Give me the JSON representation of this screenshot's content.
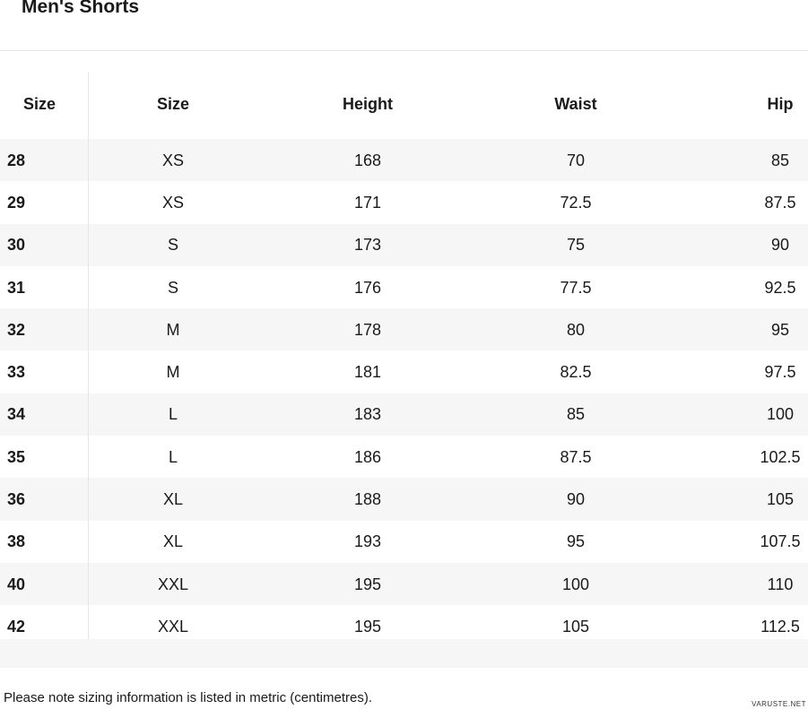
{
  "header": {
    "title": "Men's Shorts"
  },
  "table": {
    "columns": [
      "Size",
      "Size",
      "Height",
      "Waist",
      "Hip"
    ],
    "rows": [
      [
        28,
        "XS",
        168,
        70,
        85
      ],
      [
        29,
        "XS",
        171,
        72.5,
        87.5
      ],
      [
        30,
        "S",
        173,
        75,
        90
      ],
      [
        31,
        "S",
        176,
        77.5,
        92.5
      ],
      [
        32,
        "M",
        178,
        80,
        95
      ],
      [
        33,
        "M",
        181,
        82.5,
        97.5
      ],
      [
        34,
        "L",
        183,
        85,
        100
      ],
      [
        35,
        "L",
        186,
        87.5,
        102.5
      ],
      [
        36,
        "XL",
        188,
        90,
        105
      ],
      [
        38,
        "XL",
        193,
        95,
        107.5
      ],
      [
        40,
        "XXL",
        195,
        100,
        110
      ],
      [
        42,
        "XXL",
        195,
        105,
        112.5
      ]
    ]
  },
  "footer": {
    "note": "Please note sizing information is listed in metric (centimetres).",
    "watermark": "VARUSTE.NET"
  }
}
